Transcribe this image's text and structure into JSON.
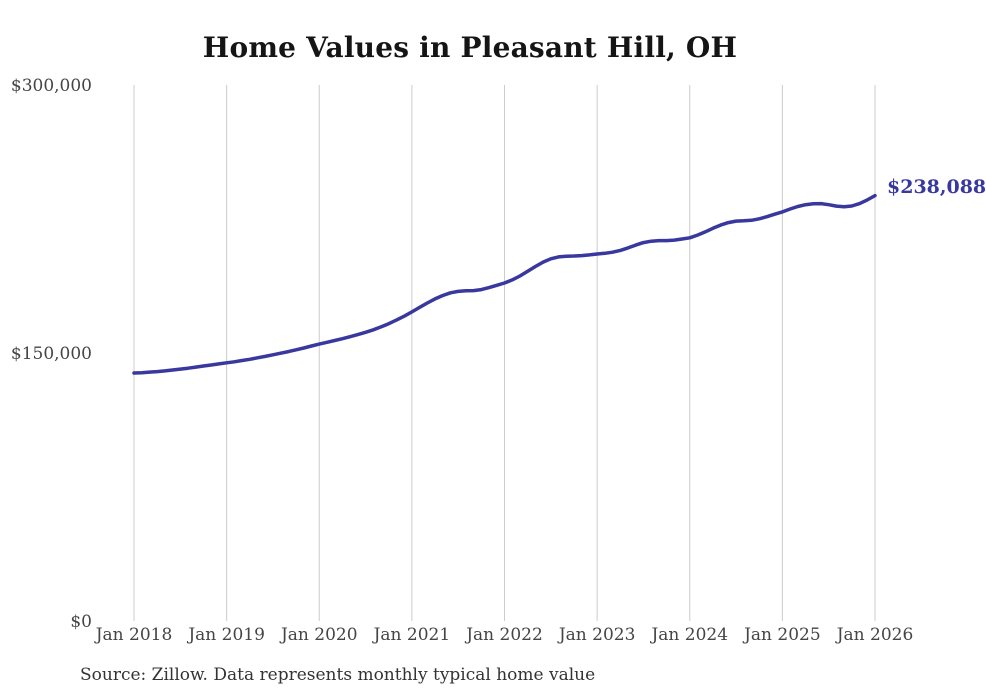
{
  "chart_data": {
    "type": "line",
    "title": "Home Values in Pleasant Hill, OH",
    "source": "Source: Zillow. Data represents monthly typical home value",
    "end_label": "$238,088",
    "latest_value": 238088,
    "series_name": "Typical home value",
    "xlabel": "",
    "ylabel": "",
    "ylim": [
      0,
      300000
    ],
    "grid": "vertical-only",
    "legend": "none",
    "x_ticks": [
      "Jan 2018",
      "Jan 2019",
      "Jan 2020",
      "Jan 2021",
      "Jan 2022",
      "Jan 2023",
      "Jan 2024",
      "Jan 2025",
      "Jan 2026"
    ],
    "y_ticks": [
      {
        "label": "$300,000",
        "value": 300000
      },
      {
        "label": "$150,000",
        "value": 150000
      },
      {
        "label": "$0",
        "value": 0
      }
    ],
    "colors": {
      "line": "#38389e",
      "grid": "#cccccc",
      "tick_text": "#454545",
      "title_text": "#151515",
      "source_text": "#333333",
      "background": "#ffffff"
    },
    "months": [
      "2018-01",
      "2018-02",
      "2018-03",
      "2018-04",
      "2018-05",
      "2018-06",
      "2018-07",
      "2018-08",
      "2018-09",
      "2018-10",
      "2018-11",
      "2018-12",
      "2019-01",
      "2019-02",
      "2019-03",
      "2019-04",
      "2019-05",
      "2019-06",
      "2019-07",
      "2019-08",
      "2019-09",
      "2019-10",
      "2019-11",
      "2019-12",
      "2020-01",
      "2020-02",
      "2020-03",
      "2020-04",
      "2020-05",
      "2020-06",
      "2020-07",
      "2020-08",
      "2020-09",
      "2020-10",
      "2020-11",
      "2020-12",
      "2021-01",
      "2021-02",
      "2021-03",
      "2021-04",
      "2021-05",
      "2021-06",
      "2021-07",
      "2021-08",
      "2021-09",
      "2021-10",
      "2021-11",
      "2021-12",
      "2022-01",
      "2022-02",
      "2022-03",
      "2022-04",
      "2022-05",
      "2022-06",
      "2022-07",
      "2022-08",
      "2022-09",
      "2022-10",
      "2022-11",
      "2022-12",
      "2023-01",
      "2023-02",
      "2023-03",
      "2023-04",
      "2023-05",
      "2023-06",
      "2023-07",
      "2023-08",
      "2023-09",
      "2023-10",
      "2023-11",
      "2023-12",
      "2024-01",
      "2024-02",
      "2024-03",
      "2024-04",
      "2024-05",
      "2024-06",
      "2024-07",
      "2024-08",
      "2024-09",
      "2024-10",
      "2024-11",
      "2024-12",
      "2025-01",
      "2025-02",
      "2025-03",
      "2025-04",
      "2025-05",
      "2025-06",
      "2025-07",
      "2025-08",
      "2025-09",
      "2025-10",
      "2025-11",
      "2025-12",
      "2026-01"
    ],
    "values": [
      138800,
      139000,
      139300,
      139600,
      140000,
      140500,
      141000,
      141500,
      142100,
      142700,
      143300,
      143900,
      144500,
      145100,
      145800,
      146500,
      147300,
      148100,
      149000,
      149900,
      150800,
      151800,
      152800,
      153900,
      155000,
      156000,
      157000,
      158000,
      159100,
      160300,
      161600,
      163000,
      164600,
      166400,
      168400,
      170600,
      173000,
      175500,
      178000,
      180300,
      182200,
      183700,
      184500,
      184800,
      184900,
      185500,
      186600,
      187900,
      189200,
      190900,
      193100,
      195700,
      198400,
      200900,
      202700,
      203800,
      204200,
      204300,
      204500,
      204900,
      205400,
      205800,
      206400,
      207400,
      208800,
      210400,
      211800,
      212600,
      212900,
      212900,
      213200,
      213800,
      214500,
      216000,
      217800,
      219800,
      221600,
      223000,
      223800,
      224000,
      224300,
      225100,
      226300,
      227700,
      229000,
      230600,
      232000,
      233000,
      233500,
      233600,
      233000,
      232200,
      231900,
      232300,
      233600,
      235700,
      238088
    ]
  }
}
